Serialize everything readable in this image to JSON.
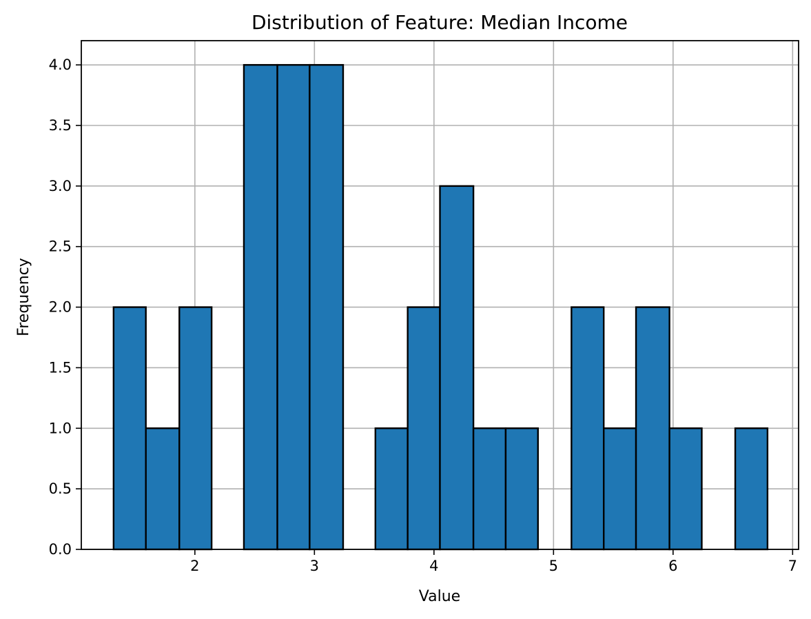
{
  "chart_data": {
    "type": "bar",
    "title": "Distribution of Feature: Median Income",
    "xlabel": "Value",
    "ylabel": "Frequency",
    "xlim": [
      1.05,
      7.05
    ],
    "ylim": [
      0.0,
      4.2
    ],
    "x_ticks": [
      2,
      3,
      4,
      5,
      6,
      7
    ],
    "y_ticks": [
      0.0,
      0.5,
      1.0,
      1.5,
      2.0,
      2.5,
      3.0,
      3.5,
      4.0
    ],
    "x_tick_labels": [
      "2",
      "3",
      "4",
      "5",
      "6",
      "7"
    ],
    "y_tick_labels": [
      "0.0",
      "0.5",
      "1.0",
      "1.5",
      "2.0",
      "2.5",
      "3.0",
      "3.5",
      "4.0"
    ],
    "grid": true,
    "bar_color": "#1f77b4",
    "edge_color": "#000000",
    "bins": [
      {
        "x0": 1.32,
        "x1": 1.59,
        "value": 2
      },
      {
        "x0": 1.59,
        "x1": 1.87,
        "value": 1
      },
      {
        "x0": 1.87,
        "x1": 2.14,
        "value": 2
      },
      {
        "x0": 2.14,
        "x1": 2.41,
        "value": 0
      },
      {
        "x0": 2.41,
        "x1": 2.69,
        "value": 4
      },
      {
        "x0": 2.69,
        "x1": 2.96,
        "value": 4
      },
      {
        "x0": 2.96,
        "x1": 3.24,
        "value": 4
      },
      {
        "x0": 3.24,
        "x1": 3.51,
        "value": 0
      },
      {
        "x0": 3.51,
        "x1": 3.78,
        "value": 1
      },
      {
        "x0": 3.78,
        "x1": 4.05,
        "value": 2
      },
      {
        "x0": 4.05,
        "x1": 4.33,
        "value": 3
      },
      {
        "x0": 4.33,
        "x1": 4.6,
        "value": 1
      },
      {
        "x0": 4.6,
        "x1": 4.87,
        "value": 1
      },
      {
        "x0": 4.87,
        "x1": 5.15,
        "value": 0
      },
      {
        "x0": 5.15,
        "x1": 5.42,
        "value": 2
      },
      {
        "x0": 5.42,
        "x1": 5.69,
        "value": 1
      },
      {
        "x0": 5.69,
        "x1": 5.97,
        "value": 2
      },
      {
        "x0": 5.97,
        "x1": 6.24,
        "value": 1
      },
      {
        "x0": 6.24,
        "x1": 6.52,
        "value": 0
      },
      {
        "x0": 6.52,
        "x1": 6.79,
        "value": 1
      }
    ]
  }
}
